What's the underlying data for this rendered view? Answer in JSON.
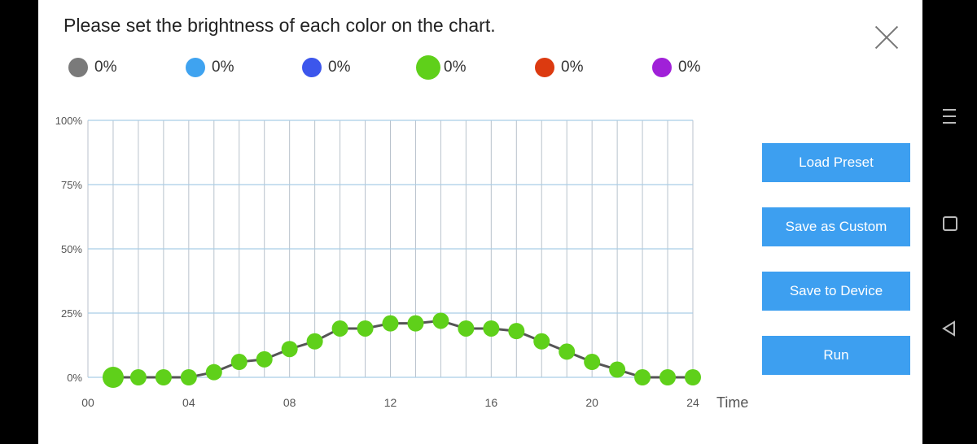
{
  "dialog": {
    "title": "Please set the brightness of each color on the chart."
  },
  "legend": [
    {
      "color": "#7a7a7a",
      "value": "0%"
    },
    {
      "color": "#3fa3f0",
      "value": "0%"
    },
    {
      "color": "#3c56ec",
      "value": "0%"
    },
    {
      "color": "#5fd01a",
      "value": "0%",
      "selected": true
    },
    {
      "color": "#dc3a10",
      "value": "0%"
    },
    {
      "color": "#a020d8",
      "value": "0%"
    }
  ],
  "buttons": {
    "load_preset": "Load Preset",
    "save_custom": "Save as Custom",
    "save_device": "Save to Device",
    "run": "Run"
  },
  "chart_data": {
    "type": "line",
    "x": [
      1,
      2,
      3,
      4,
      5,
      6,
      7,
      8,
      9,
      10,
      11,
      12,
      13,
      14,
      15,
      16,
      17,
      18,
      19,
      20,
      21,
      22,
      23,
      24
    ],
    "series": [
      {
        "color": "#5fd01a",
        "values": [
          0,
          0,
          0,
          0,
          2,
          6,
          7,
          11,
          14,
          19,
          19,
          21,
          21,
          22,
          19,
          19,
          18,
          14,
          10,
          6,
          3,
          0,
          0,
          0
        ]
      }
    ],
    "xlim": [
      0,
      24
    ],
    "ylim": [
      0,
      100
    ],
    "x_ticks": [
      "00",
      "04",
      "08",
      "12",
      "16",
      "20",
      "24"
    ],
    "x_tick_values": [
      0,
      4,
      8,
      12,
      16,
      20,
      24
    ],
    "y_ticks": [
      "0%",
      "25%",
      "50%",
      "75%",
      "100%"
    ],
    "y_tick_values": [
      0,
      25,
      50,
      75,
      100
    ],
    "xlabel": "Time",
    "line_color": "#555555",
    "grid": true
  }
}
